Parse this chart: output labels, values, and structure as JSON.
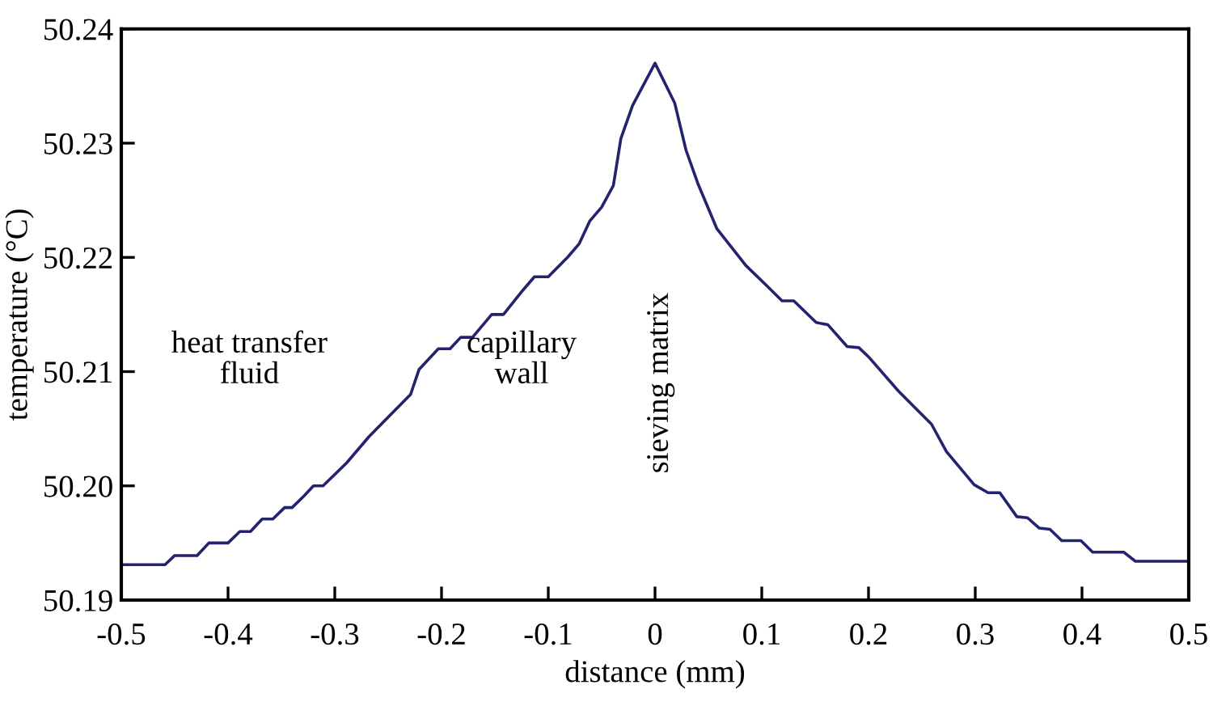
{
  "chart_data": {
    "type": "line",
    "xlabel": "distance (mm)",
    "ylabel": "temperature (°C)",
    "annotations": [
      "heat transfer\nfluid",
      "capillary\nwall",
      "sieving matrix"
    ],
    "xlim": [
      -0.5,
      0.5
    ],
    "xticks": [
      -0.5,
      -0.4,
      -0.3,
      -0.2,
      -0.1,
      0,
      0.1,
      0.2,
      0.3,
      0.4,
      0.5
    ],
    "ylim": [
      50.19,
      50.24
    ],
    "yticks": [
      {
        "value": 50.19,
        "label": "50.19"
      },
      {
        "value": 50.2,
        "label": "50.20"
      },
      {
        "value": 50.21,
        "label": "50.21"
      },
      {
        "value": 50.22,
        "label": "50.22"
      },
      {
        "value": 50.23,
        "label": "50.23"
      },
      {
        "value": 50.24,
        "label": "50.24"
      }
    ],
    "grid": false,
    "legend": false,
    "marker": "none",
    "line_style": "solid",
    "series": [
      {
        "color": "#23236e",
        "x": [
          -0.5,
          -0.459,
          -0.45,
          -0.429,
          -0.418,
          -0.4,
          -0.389,
          -0.379,
          -0.368,
          -0.358,
          -0.347,
          -0.34,
          -0.329,
          -0.32,
          -0.311,
          -0.289,
          -0.268,
          -0.247,
          -0.229,
          -0.221,
          -0.203,
          -0.192,
          -0.182,
          -0.171,
          -0.153,
          -0.142,
          -0.124,
          -0.113,
          -0.1,
          -0.082,
          -0.071,
          -0.061,
          -0.05,
          -0.039,
          -0.032,
          -0.021,
          0,
          0.0185,
          0.029,
          0.04,
          0.058,
          0.085,
          0.106,
          0.119,
          0.13,
          0.151,
          0.162,
          0.18,
          0.191,
          0.201,
          0.228,
          0.259,
          0.273,
          0.299,
          0.312,
          0.323,
          0.339,
          0.349,
          0.36,
          0.37,
          0.381,
          0.399,
          0.41,
          0.439,
          0.45,
          0.5
        ],
        "values": [
          50.1931,
          50.1931,
          50.1939,
          50.1939,
          50.195,
          50.195,
          50.196,
          50.196,
          50.1971,
          50.1971,
          50.1981,
          50.1981,
          50.1991,
          50.2,
          50.2,
          50.202,
          50.2043,
          50.2063,
          50.208,
          50.2102,
          50.212,
          50.212,
          50.213,
          50.213,
          50.215,
          50.215,
          50.2171,
          50.2183,
          50.2183,
          50.22,
          50.2212,
          50.2232,
          50.2244,
          50.2263,
          50.2304,
          50.2333,
          50.237,
          50.2335,
          50.2294,
          50.2265,
          50.2225,
          50.2193,
          50.2174,
          50.2162,
          50.2162,
          50.2143,
          50.2141,
          50.2122,
          50.2121,
          50.2112,
          50.2083,
          50.2054,
          50.203,
          50.2001,
          50.1994,
          50.1994,
          50.1973,
          50.1972,
          50.1963,
          50.1962,
          50.1952,
          50.1952,
          50.1942,
          50.1942,
          50.1934,
          50.1934
        ]
      }
    ]
  }
}
